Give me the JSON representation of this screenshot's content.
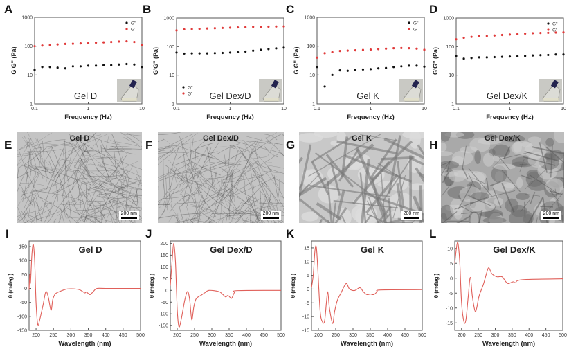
{
  "panel_letters": [
    "A",
    "B",
    "C",
    "D",
    "E",
    "F",
    "G",
    "H",
    "I",
    "J",
    "K",
    "L"
  ],
  "colors": {
    "g_prime": "#e03a3a",
    "g_double_prime": "#111111",
    "cd_line": "#e0605a",
    "axis": "#555555"
  },
  "chart_data": [
    {
      "panel": "A",
      "type": "scatter",
      "title": "Gel D",
      "xlabel": "Frequency (Hz)",
      "ylabel": "G'G'' (Pa)",
      "xscale": "log",
      "yscale": "log",
      "xlim": [
        0.1,
        10
      ],
      "ylim": [
        1,
        1000
      ],
      "xticks": [
        "0.1",
        "1",
        "10"
      ],
      "yticks": [
        "1",
        "10",
        "100",
        "1000"
      ],
      "legend": "top-right",
      "inset": "vial-photo",
      "x": [
        0.1,
        0.139,
        0.193,
        0.268,
        0.373,
        0.518,
        0.72,
        1,
        1.39,
        1.93,
        2.68,
        3.73,
        5.18,
        7.2,
        10
      ],
      "series": [
        {
          "name": "G''",
          "color": "#111111",
          "values": [
            15,
            19,
            19,
            18,
            17,
            20,
            20,
            21,
            21,
            22,
            22,
            23,
            24,
            23,
            19
          ]
        },
        {
          "name": "G'",
          "color": "#e03a3a",
          "values": [
            100,
            105,
            110,
            115,
            120,
            122,
            125,
            128,
            132,
            136,
            140,
            145,
            148,
            140,
            110
          ]
        }
      ]
    },
    {
      "panel": "B",
      "type": "scatter",
      "title": "Gel Dex/D",
      "xlabel": "Frequency (Hz)",
      "ylabel": "G'G'' (Pa)",
      "xscale": "log",
      "yscale": "log",
      "xlim": [
        0.1,
        10
      ],
      "ylim": [
        1,
        1000
      ],
      "xticks": [
        "0.1",
        "1",
        "10"
      ],
      "yticks": [
        "1",
        "10",
        "100",
        "1000"
      ],
      "legend": "bottom-left",
      "inset": "vial-photo",
      "x": [
        0.1,
        0.139,
        0.193,
        0.268,
        0.373,
        0.518,
        0.72,
        1,
        1.39,
        1.93,
        2.68,
        3.73,
        5.18,
        7.2,
        10
      ],
      "series": [
        {
          "name": "G''",
          "color": "#111111",
          "values": [
            62,
            57,
            58,
            58,
            58,
            59,
            60,
            62,
            64,
            67,
            72,
            77,
            82,
            87,
            92
          ]
        },
        {
          "name": "G'",
          "color": "#e03a3a",
          "values": [
            370,
            400,
            410,
            420,
            430,
            440,
            450,
            460,
            470,
            480,
            490,
            495,
            500,
            505,
            510
          ]
        }
      ]
    },
    {
      "panel": "C",
      "type": "scatter",
      "title": "Gel K",
      "xlabel": "Frequency (Hz)",
      "ylabel": "G'G'' (Pa)",
      "xscale": "log",
      "yscale": "log",
      "xlim": [
        0.1,
        10
      ],
      "ylim": [
        1,
        1000
      ],
      "xticks": [
        "0.1",
        "1",
        "10"
      ],
      "yticks": [
        "1",
        "10",
        "100",
        "1000"
      ],
      "legend": "top-right",
      "inset": "vial-photo",
      "x": [
        0.1,
        0.139,
        0.193,
        0.268,
        0.373,
        0.518,
        0.72,
        1,
        1.39,
        1.93,
        2.68,
        3.73,
        5.18,
        7.2,
        10
      ],
      "series": [
        {
          "name": "G''",
          "color": "#111111",
          "values": [
            19,
            4,
            10,
            14.5,
            14,
            15,
            15.5,
            16,
            17,
            17.5,
            19,
            20,
            21,
            21,
            19.5
          ]
        },
        {
          "name": "G'",
          "color": "#e03a3a",
          "values": [
            40,
            57,
            62,
            68,
            70,
            72,
            74,
            76,
            79,
            82,
            85,
            86,
            85,
            82,
            75
          ]
        }
      ]
    },
    {
      "panel": "D",
      "type": "scatter",
      "title": "Gel Dex/K",
      "xlabel": "Frequency (Hz)",
      "ylabel": "G'G'' (Pa)",
      "xscale": "log",
      "yscale": "log",
      "xlim": [
        0.1,
        10
      ],
      "ylim": [
        1,
        1000
      ],
      "xticks": [
        "0.1",
        "1",
        "10"
      ],
      "yticks": [
        "1",
        "10",
        "100",
        "1000"
      ],
      "legend": "top-right",
      "inset": "vial-photo",
      "x": [
        0.1,
        0.139,
        0.193,
        0.268,
        0.373,
        0.518,
        0.72,
        1,
        1.39,
        1.93,
        2.68,
        3.73,
        5.18,
        7.2,
        10
      ],
      "series": [
        {
          "name": "G''",
          "color": "#111111",
          "values": [
            47,
            38,
            40,
            42,
            42,
            43,
            44,
            45,
            46,
            47,
            49,
            50,
            51,
            53,
            53
          ]
        },
        {
          "name": "G'",
          "color": "#e03a3a",
          "values": [
            180,
            205,
            220,
            230,
            235,
            245,
            255,
            265,
            275,
            285,
            295,
            300,
            305,
            310,
            315
          ]
        }
      ]
    },
    {
      "panel": "I",
      "type": "line",
      "title": "Gel D",
      "xlabel": "Wavelength (nm)",
      "ylabel": "θ (mdeg.)",
      "xlim": [
        180,
        500
      ],
      "ylim": [
        -150,
        170
      ],
      "xticks": [
        200,
        250,
        300,
        350,
        400,
        450,
        500
      ],
      "yticks": [
        -150,
        -100,
        -50,
        0,
        50,
        100,
        150
      ],
      "x": [
        180,
        182,
        184,
        188,
        192,
        196,
        200,
        205,
        210,
        220,
        228,
        235,
        243,
        248,
        255,
        270,
        290,
        320,
        330,
        340,
        345,
        355,
        365,
        375,
        400,
        500
      ],
      "values": [
        -5,
        50,
        20,
        120,
        158,
        100,
        -50,
        -130,
        -115,
        -60,
        -12,
        -30,
        -78,
        -40,
        -20,
        -10,
        -2,
        -3,
        -8,
        -16,
        -13,
        -22,
        -10,
        0,
        0,
        0
      ]
    },
    {
      "panel": "J",
      "type": "line",
      "title": "Gel Dex/D",
      "xlabel": "Wavelength (nm)",
      "ylabel": "θ (mdeg.)",
      "xlim": [
        180,
        500
      ],
      "ylim": [
        -170,
        210
      ],
      "xticks": [
        200,
        250,
        300,
        350,
        400,
        450,
        500
      ],
      "yticks": [
        -150,
        -100,
        -50,
        0,
        50,
        100,
        150,
        200
      ],
      "x": [
        180,
        185,
        190,
        195,
        200,
        205,
        212,
        222,
        230,
        236,
        242,
        248,
        255,
        270,
        280,
        292,
        320,
        330,
        340,
        345,
        350,
        357,
        365,
        375,
        500
      ],
      "values": [
        20,
        120,
        200,
        120,
        -80,
        -155,
        -120,
        -40,
        -5,
        -40,
        -125,
        -70,
        -35,
        -20,
        -10,
        0,
        -5,
        -15,
        -28,
        -22,
        -25,
        -34,
        -10,
        -1,
        0
      ]
    },
    {
      "panel": "K",
      "type": "line",
      "title": "Gel K",
      "xlabel": "Wavelength (nm)",
      "ylabel": "θ (mdeg.)",
      "xlim": [
        180,
        500
      ],
      "ylim": [
        -15,
        17.5
      ],
      "xticks": [
        200,
        250,
        300,
        350,
        400,
        450,
        500
      ],
      "yticks": [
        -15,
        -10,
        -5,
        0,
        5,
        10,
        15
      ],
      "x": [
        180,
        185,
        190,
        194,
        198,
        205,
        212,
        218,
        223,
        227,
        232,
        241,
        247,
        255,
        265,
        280,
        290,
        305,
        320,
        330,
        340,
        350,
        360,
        370,
        380,
        500
      ],
      "values": [
        0.5,
        5,
        14,
        15.3,
        8,
        -8,
        -12,
        -11.5,
        -5,
        -1,
        -7,
        -12.5,
        -8,
        -4,
        -1.5,
        2,
        0,
        -0.5,
        0.5,
        -1,
        -2,
        -1.8,
        -2,
        -1,
        -0.3,
        -0.2
      ]
    },
    {
      "panel": "L",
      "type": "line",
      "title": "Gel Dex/K",
      "xlabel": "Wavelength (nm)",
      "ylabel": "θ (mdeg.)",
      "xlim": [
        180,
        500
      ],
      "ylim": [
        -17.5,
        12.5
      ],
      "xticks": [
        200,
        250,
        300,
        350,
        400,
        450,
        500
      ],
      "yticks": [
        -15,
        -10,
        -5,
        0,
        5,
        10
      ],
      "x": [
        180,
        186,
        190,
        195,
        200,
        207,
        213,
        220,
        226,
        232,
        240,
        245,
        252,
        265,
        275,
        281,
        290,
        305,
        320,
        330,
        338,
        350,
        355,
        360,
        380,
        500
      ],
      "values": [
        5,
        11,
        11.5,
        5,
        -8,
        -14.5,
        -14,
        -6,
        0.3,
        -6,
        -11,
        -10,
        -6,
        -2,
        2,
        3.5,
        1.5,
        0.5,
        0.5,
        -1,
        -1.8,
        -1.3,
        -1.2,
        -1.5,
        -0.5,
        -0.2
      ]
    }
  ],
  "tem_panels": [
    {
      "panel": "E",
      "title": "Gel D",
      "scale_bar": "200 nm",
      "texture": "dense-fine-fibers"
    },
    {
      "panel": "F",
      "title": "Gel Dex/D",
      "scale_bar": "200 nm",
      "texture": "dense-fine-fibers"
    },
    {
      "panel": "G",
      "title": "Gel K",
      "scale_bar": "200 nm",
      "texture": "thick-fiber-bundles"
    },
    {
      "panel": "H",
      "title": "Gel Dex/K",
      "scale_bar": "200 nm",
      "texture": "dark-aggregates"
    }
  ]
}
